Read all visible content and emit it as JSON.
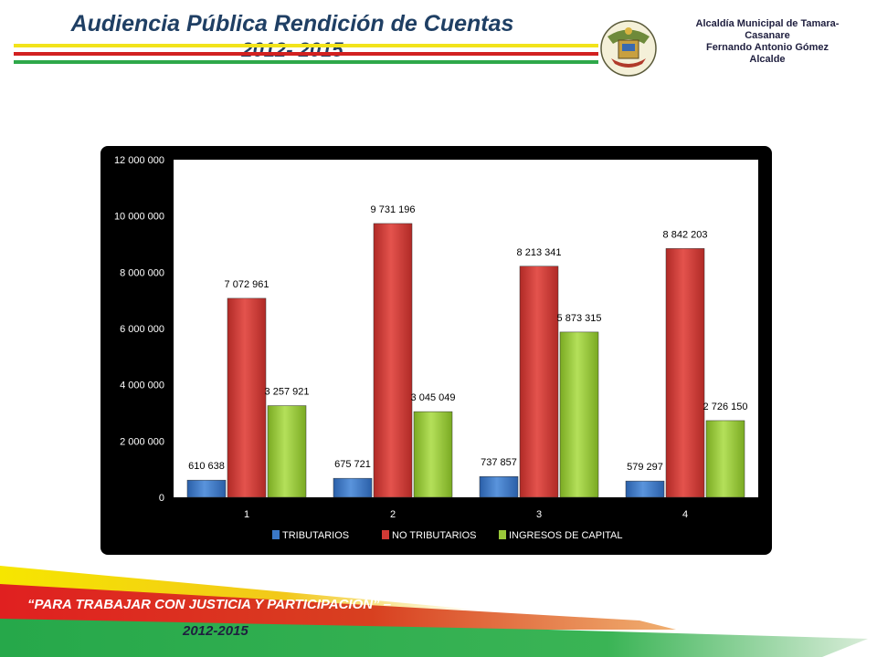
{
  "header": {
    "title_line1": "Audiencia Pública Rendición de Cuentas",
    "title_line2": "2012- 2015",
    "municipality_line1": "Alcaldía Municipal de Tamara-",
    "municipality_line2": "Casanare",
    "mayor_name": "Fernando Antonio Gómez",
    "mayor_title": "Alcalde"
  },
  "footer": {
    "slogan": "“PARA TRABAJAR CON JUSTICIA Y PARTICIPACION” –",
    "years": "2012-2015"
  },
  "colors": {
    "stripe_yellow": "#f2e31a",
    "stripe_red": "#d22020",
    "stripe_green": "#2ea84a",
    "title": "#1f3f64",
    "tributarios": "#3a78c8",
    "no_tributarios": "#d23a35",
    "ingresos_capital": "#9ac83a"
  },
  "chart_data": {
    "type": "bar",
    "categories": [
      "1",
      "2",
      "3",
      "4"
    ],
    "series": [
      {
        "name": "TRIBUTARIOS",
        "values": [
          610638,
          675721,
          737857,
          579297
        ],
        "labels": [
          "610 638",
          "675 721",
          "737 857",
          "579 297"
        ]
      },
      {
        "name": "NO TRIBUTARIOS",
        "values": [
          7072961,
          9731196,
          8213341,
          8842203
        ],
        "labels": [
          "7 072 961",
          "9 731 196",
          "8 213 341",
          "8 842 203"
        ]
      },
      {
        "name": "INGRESOS DE CAPITAL",
        "values": [
          3257921,
          3045049,
          5873315,
          2726150
        ],
        "labels": [
          "3 257 921",
          "3 045 049",
          "5 873 315",
          "2 726 150"
        ]
      }
    ],
    "ylim": [
      0,
      12000000
    ],
    "yticks": [
      0,
      2000000,
      4000000,
      6000000,
      8000000,
      10000000,
      12000000
    ],
    "ytick_labels": [
      "0",
      "2 000 000",
      "4 000 000",
      "6 000 000",
      "8 000 000",
      "10 000 000",
      "12 000 000"
    ],
    "grid": false,
    "legend_position": "bottom"
  }
}
